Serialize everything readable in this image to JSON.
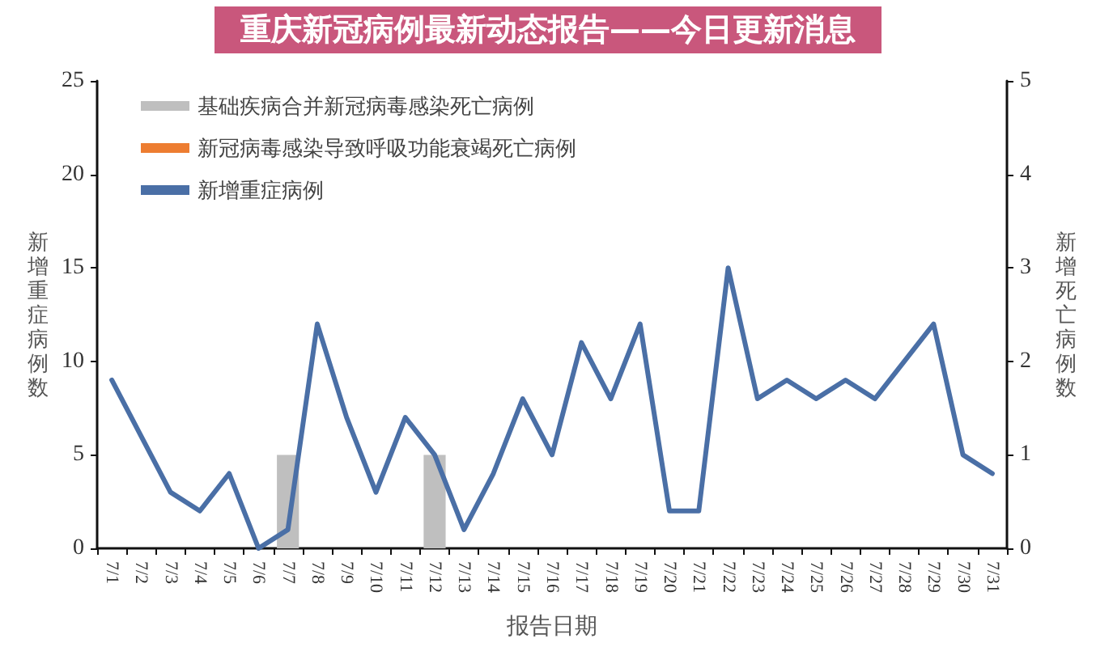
{
  "chart_data": {
    "type": "bar",
    "title": "重庆新冠病例最新动态报告——今日更新消息",
    "xlabel": "报告日期",
    "ylabel": "新增重症病例数",
    "y2label": "新增死亡病例数",
    "categories": [
      "7/1",
      "7/2",
      "7/3",
      "7/4",
      "7/5",
      "7/6",
      "7/7",
      "7/8",
      "7/9",
      "7/10",
      "7/11",
      "7/12",
      "7/13",
      "7/14",
      "7/15",
      "7/16",
      "7/17",
      "7/18",
      "7/19",
      "7/20",
      "7/21",
      "7/22",
      "7/23",
      "7/24",
      "7/25",
      "7/26",
      "7/27",
      "7/28",
      "7/29",
      "7/30",
      "7/31"
    ],
    "series": [
      {
        "name": "基础疾病合并新冠病毒感染死亡病例",
        "color": "#bfbfbf",
        "axis": "y2",
        "values": [
          null,
          null,
          null,
          null,
          null,
          null,
          1,
          null,
          null,
          null,
          null,
          1,
          null,
          null,
          null,
          null,
          null,
          null,
          null,
          null,
          null,
          null,
          null,
          null,
          null,
          null,
          null,
          null,
          null,
          null,
          null
        ]
      },
      {
        "name": "新冠病毒感染导致呼吸功能衰竭死亡病例",
        "color": "#ed7d31",
        "axis": "y2",
        "values": [
          null,
          null,
          null,
          null,
          null,
          null,
          null,
          null,
          null,
          null,
          null,
          null,
          null,
          null,
          null,
          null,
          null,
          null,
          null,
          null,
          null,
          null,
          null,
          null,
          null,
          null,
          null,
          null,
          null,
          null,
          null
        ]
      },
      {
        "name": "新增重症病例",
        "type": "line",
        "color": "#4a6fa6",
        "marker": "none",
        "line_style": "solid",
        "values": [
          9,
          6,
          3,
          2,
          4,
          0,
          1,
          12,
          7,
          3,
          7,
          5,
          1,
          4,
          8,
          5,
          11,
          8,
          12,
          2,
          2,
          15,
          8,
          9,
          8,
          9,
          8,
          10,
          12,
          5,
          4
        ]
      }
    ],
    "ylim": [
      0,
      25
    ],
    "yticks": [
      0,
      5,
      10,
      15,
      20,
      25
    ],
    "y2lim": [
      0,
      5
    ],
    "y2ticks": [
      0,
      1,
      2,
      3,
      4,
      5
    ],
    "legend": "top left"
  }
}
